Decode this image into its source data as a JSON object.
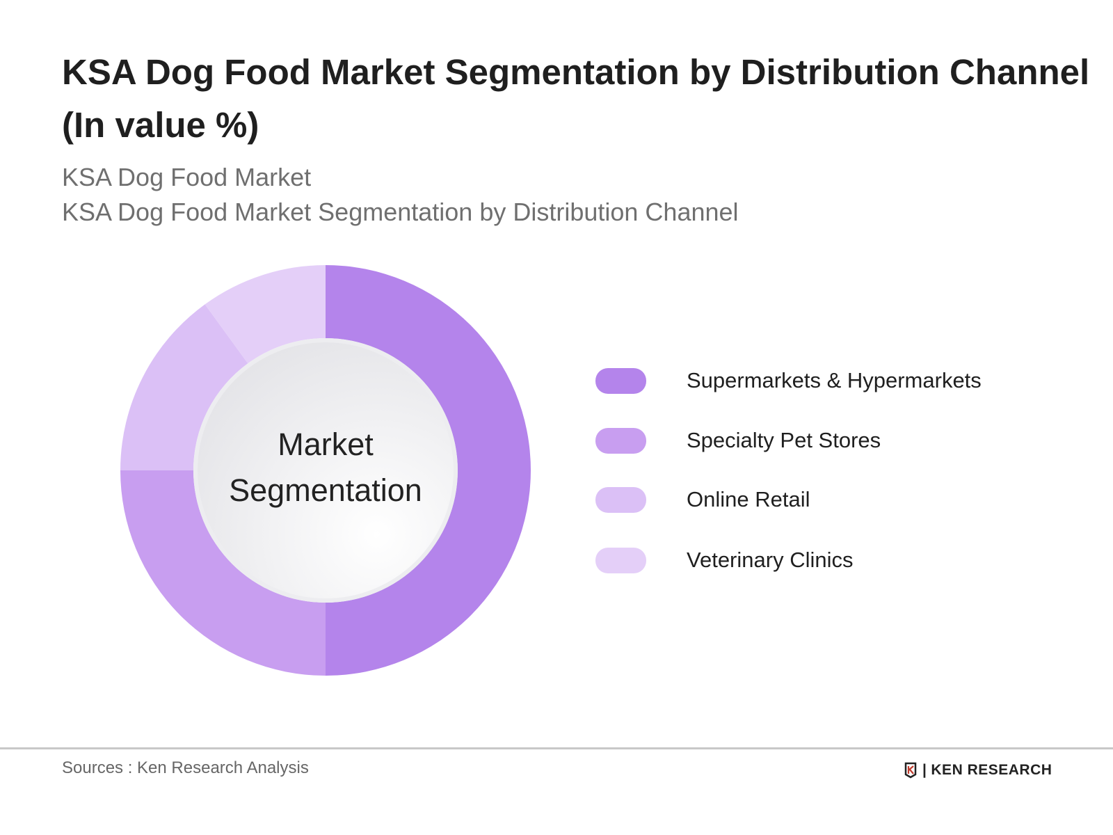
{
  "header": {
    "title": "KSA Dog Food Market Segmentation by Distribution Channel (In value %)",
    "subtitle_1": "KSA Dog Food Market",
    "subtitle_2": "KSA Dog Food Market Segmentation by Distribution Channel"
  },
  "chart_data": {
    "type": "pie",
    "variant": "donut",
    "center_label": "Market Segmentation",
    "legend_position": "right",
    "categories": [
      "Supermarkets & Hypermarkets",
      "Specialty Pet Stores",
      "Online Retail",
      "Veterinary Clinics"
    ],
    "values": [
      50,
      25,
      15,
      10
    ],
    "colors": [
      "#b484eb",
      "#c89ef0",
      "#dbc0f6",
      "#e4cff8"
    ]
  },
  "footer": {
    "source": "Sources : Ken Research Analysis",
    "logo_text": "KEN RESEARCH"
  }
}
